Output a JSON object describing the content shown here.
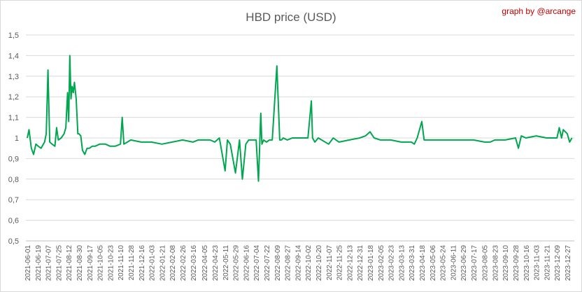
{
  "credit": "graph by @arcange",
  "chart_data": {
    "type": "line",
    "title": "HBD price (USD)",
    "xlabel": "",
    "ylabel": "",
    "ylim": [
      0.5,
      1.5
    ],
    "y_ticks": [
      "0,5",
      "0,6",
      "0,7",
      "0,8",
      "0,9",
      "1",
      "1,1",
      "1,2",
      "1,3",
      "1,4",
      "1,5"
    ],
    "y_tick_values": [
      0.5,
      0.6,
      0.7,
      0.8,
      0.9,
      1.0,
      1.1,
      1.2,
      1.3,
      1.4,
      1.5
    ],
    "x_tick_labels": [
      "2021-06-01",
      "2021-06-19",
      "2021-07-07",
      "2021-07-25",
      "2021-08-12",
      "2021-08-30",
      "2021-09-17",
      "2021-10-05",
      "2021-10-23",
      "2021-11-10",
      "2021-11-28",
      "2021-12-16",
      "2022-01-03",
      "2022-01-21",
      "2022-02-08",
      "2022-02-26",
      "2022-03-16",
      "2022-04-05",
      "2022-04-23",
      "2022-05-11",
      "2022-05-29",
      "2022-06-16",
      "2022-07-04",
      "2022-07-22",
      "2022-08-09",
      "2022-08-27",
      "2022-09-14",
      "2022-10-02",
      "2022-10-20",
      "2022-11-07",
      "2022-11-25",
      "2022-12-13",
      "2022-12-31",
      "2023-01-18",
      "2023-02-05",
      "2023-02-23",
      "2023-03-13",
      "2023-03-31",
      "2023-04-18",
      "2023-05-06",
      "2023-05-24",
      "2023-06-11",
      "2023-06-29",
      "2023-07-17",
      "2023-08-05",
      "2023-08-23",
      "2023-09-10",
      "2023-09-28",
      "2023-10-16",
      "2023-11-03",
      "2023-11-21",
      "2023-12-09",
      "2023-12-27"
    ],
    "grid": true,
    "legend": "none",
    "series": [
      {
        "color": "#00a650",
        "x": [
          "2021-06-01",
          "2021-06-04",
          "2021-06-08",
          "2021-06-12",
          "2021-06-16",
          "2021-06-20",
          "2021-06-25",
          "2021-07-01",
          "2021-07-04",
          "2021-07-07",
          "2021-07-10",
          "2021-07-14",
          "2021-07-19",
          "2021-07-22",
          "2021-07-25",
          "2021-07-30",
          "2021-08-04",
          "2021-08-07",
          "2021-08-10",
          "2021-08-12",
          "2021-08-14",
          "2021-08-16",
          "2021-08-18",
          "2021-08-20",
          "2021-08-22",
          "2021-08-25",
          "2021-08-28",
          "2021-08-30",
          "2021-09-02",
          "2021-09-05",
          "2021-09-09",
          "2021-09-13",
          "2021-09-17",
          "2021-09-22",
          "2021-09-27",
          "2021-10-05",
          "2021-10-15",
          "2021-10-23",
          "2021-11-01",
          "2021-11-10",
          "2021-11-13",
          "2021-11-16",
          "2021-11-22",
          "2021-11-28",
          "2021-12-16",
          "2022-01-03",
          "2022-01-21",
          "2022-02-08",
          "2022-02-26",
          "2022-03-16",
          "2022-03-25",
          "2022-04-05",
          "2022-04-15",
          "2022-04-23",
          "2022-05-01",
          "2022-05-11",
          "2022-05-15",
          "2022-05-20",
          "2022-05-29",
          "2022-06-05",
          "2022-06-10",
          "2022-06-16",
          "2022-06-21",
          "2022-06-26",
          "2022-07-04",
          "2022-07-08",
          "2022-07-12",
          "2022-07-14",
          "2022-07-17",
          "2022-07-22",
          "2022-07-27",
          "2022-08-01",
          "2022-08-09",
          "2022-08-14",
          "2022-08-17",
          "2022-08-20",
          "2022-08-27",
          "2022-09-05",
          "2022-09-14",
          "2022-09-24",
          "2022-10-02",
          "2022-10-08",
          "2022-10-10",
          "2022-10-14",
          "2022-10-20",
          "2022-11-07",
          "2022-11-15",
          "2022-11-25",
          "2022-12-13",
          "2022-12-31",
          "2023-01-10",
          "2023-01-18",
          "2023-01-25",
          "2023-02-05",
          "2023-02-23",
          "2023-03-13",
          "2023-03-31",
          "2023-04-05",
          "2023-04-10",
          "2023-04-18",
          "2023-04-22",
          "2023-05-06",
          "2023-05-24",
          "2023-06-11",
          "2023-06-29",
          "2023-07-17",
          "2023-08-05",
          "2023-08-15",
          "2023-08-23",
          "2023-09-10",
          "2023-09-28",
          "2023-10-03",
          "2023-10-08",
          "2023-10-16",
          "2023-11-03",
          "2023-11-21",
          "2023-12-09",
          "2023-12-13",
          "2023-12-17",
          "2023-12-20",
          "2023-12-27",
          "2023-12-31",
          "2024-01-04"
        ],
        "y": [
          1.0,
          1.04,
          0.95,
          0.92,
          0.97,
          0.96,
          0.95,
          0.98,
          1.02,
          1.33,
          0.98,
          0.97,
          0.96,
          1.05,
          0.99,
          1.0,
          1.02,
          1.05,
          1.22,
          1.08,
          1.4,
          1.19,
          1.25,
          1.22,
          1.27,
          1.19,
          1.02,
          1.02,
          1.01,
          0.94,
          0.92,
          0.95,
          0.95,
          0.96,
          0.96,
          0.97,
          0.97,
          0.96,
          0.96,
          0.97,
          1.1,
          0.97,
          0.98,
          0.99,
          0.98,
          0.98,
          0.97,
          0.98,
          0.99,
          0.98,
          0.99,
          0.99,
          0.99,
          0.98,
          1.0,
          0.84,
          0.99,
          0.97,
          0.83,
          0.99,
          0.8,
          0.97,
          0.99,
          0.99,
          0.99,
          0.79,
          1.12,
          0.97,
          0.99,
          0.98,
          0.99,
          0.99,
          1.35,
          0.99,
          0.99,
          1.0,
          0.99,
          1.0,
          1.0,
          1.0,
          1.0,
          1.18,
          1.0,
          0.98,
          1.0,
          0.97,
          1.0,
          0.98,
          0.99,
          1.0,
          1.01,
          1.03,
          1.0,
          0.99,
          0.99,
          0.98,
          0.98,
          0.97,
          1.0,
          1.08,
          0.99,
          0.99,
          0.99,
          0.99,
          0.99,
          0.99,
          0.98,
          0.98,
          0.99,
          0.99,
          1.0,
          0.95,
          1.01,
          1.0,
          1.01,
          1.0,
          1.0,
          1.05,
          1.0,
          1.04,
          1.02,
          0.98,
          1.0
        ]
      }
    ]
  }
}
